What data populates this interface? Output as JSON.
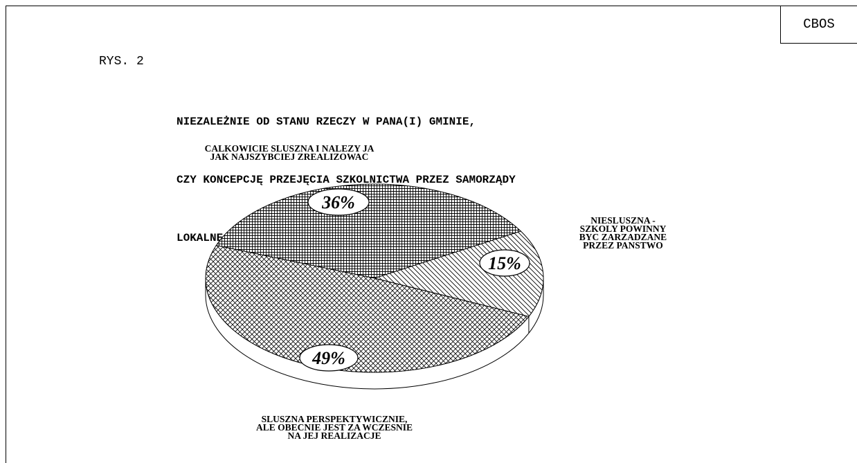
{
  "header": {
    "source": "CBOS",
    "figure_label": "RYS. 2",
    "question_lines": [
      "NIEZALEŻNIE OD STANU RZECZY W PANA(I) GMINIE,",
      "CZY KONCEPCJĘ PRZEJĘCIA SZKOLNICTWA PRZEZ SAMORZĄDY",
      "LOKALNE UWAŻA PAN(I) ZA:"
    ]
  },
  "chart_data": {
    "type": "pie",
    "title": "NIEZALEŻNIE OD STANU RZECZY W PANA(I) GMINIE, CZY KONCEPCJĘ PRZEJĘCIA SZKOLNICTWA PRZEZ SAMORZĄDY LOKALNE UWAŻA PAN(I) ZA:",
    "slices": [
      {
        "label_lines": [
          "CALKOWICIE SLUSZNA I NALEZY JA",
          "JAK NAJSZYBCIEJ ZREALIZOWAC"
        ],
        "value": 36,
        "value_label": "36%",
        "pattern": "fine-grid"
      },
      {
        "label_lines": [
          "NIESLUSZNA -",
          "SZKOLY POWINNY",
          "BYC ZARZADZANE",
          "PRZEZ PANSTWO"
        ],
        "value": 15,
        "value_label": "15%",
        "pattern": "diagonal"
      },
      {
        "label_lines": [
          "SLUSZNA PERSPEKTYWICZNIE,",
          "ALE OBECNIE JEST ZA WCZESNIE",
          "NA JEJ REALIZACJE"
        ],
        "value": 49,
        "value_label": "49%",
        "pattern": "crosshatch"
      }
    ]
  }
}
